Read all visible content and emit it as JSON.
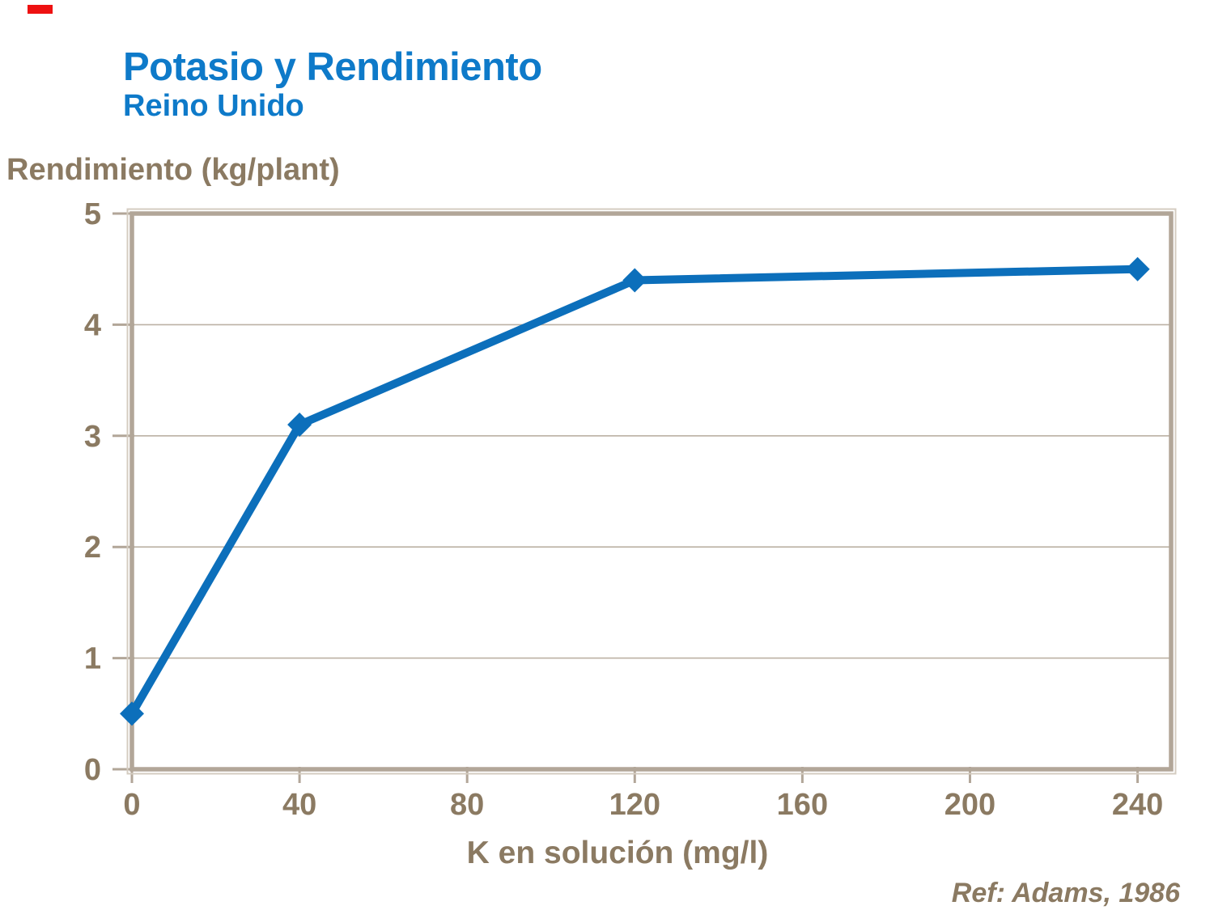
{
  "header": {
    "title": "Potasio y Rendimiento",
    "subtitle": "Reino Unido"
  },
  "footer": {
    "ref": "Ref: Adams, 1986"
  },
  "colors": {
    "title_blue": "#0e7ac9",
    "line_blue": "#0c6fbb",
    "label_taupe": "#8b7a62",
    "axis_taupe": "#b2a698",
    "grid_taupe": "#bbb1a4",
    "bevel_light": "#d4ccc1",
    "accent_red": "#ee1111",
    "background": "#ffffff"
  },
  "chart_data": {
    "type": "line",
    "title": "Potasio y Rendimiento",
    "subtitle": "Reino Unido",
    "xlabel": "K en solución (mg/l)",
    "ylabel": "Rendimiento (kg/plant)",
    "x": [
      0,
      40,
      120,
      240
    ],
    "y": [
      0.5,
      3.1,
      4.4,
      4.5
    ],
    "xticks": [
      0,
      40,
      80,
      120,
      160,
      200,
      240
    ],
    "yticks": [
      0,
      1,
      2,
      3,
      4,
      5
    ],
    "xlim": [
      0,
      248
    ],
    "ylim": [
      0,
      5
    ],
    "grid": "horizontal-only",
    "legend": "none",
    "marker": "diamond",
    "annotation": "Ref: Adams, 1986"
  }
}
